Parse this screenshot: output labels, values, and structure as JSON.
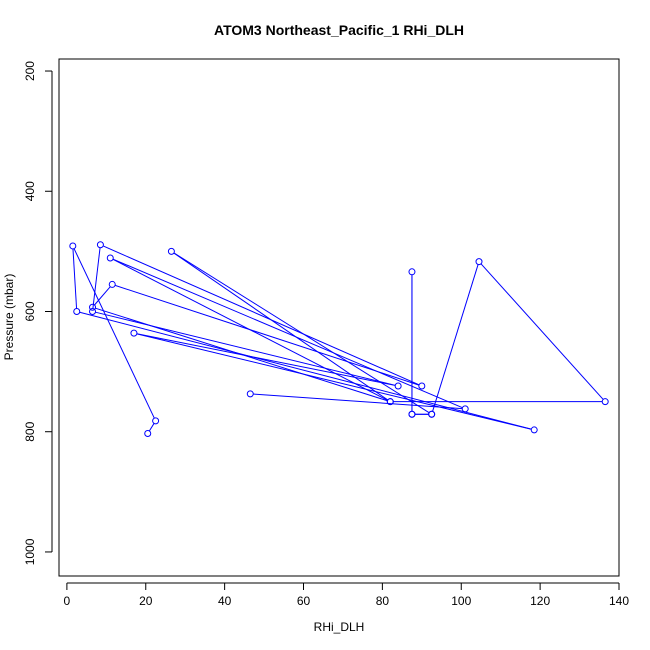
{
  "chart_data": {
    "type": "line",
    "title": "ATOM3 Northeast_Pacific_1 RHi_DLH",
    "xlabel": "RHi_DLH",
    "ylabel": "Pressure (mbar)",
    "xlim": [
      -2,
      140
    ],
    "ylim": [
      1040,
      180
    ],
    "y_reversed": true,
    "grid": false,
    "legend": "none",
    "xticks": [
      0,
      20,
      40,
      60,
      80,
      100,
      120,
      140
    ],
    "yticks": [
      200,
      400,
      600,
      800,
      1000
    ],
    "series": [
      {
        "color": "#0000ff",
        "marker": "open-circle",
        "points": [
          {
            "x": 46.5,
            "y": 737
          },
          {
            "x": 101.0,
            "y": 762
          },
          {
            "x": 11.0,
            "y": 511
          },
          {
            "x": 82.0,
            "y": 750
          },
          {
            "x": 26.5,
            "y": 500
          },
          {
            "x": 92.5,
            "y": 771
          },
          {
            "x": 87.5,
            "y": 771
          },
          {
            "x": 87.5,
            "y": 534
          },
          {
            "x": 87.5,
            "y": 771
          },
          {
            "x": 92.5,
            "y": 771
          },
          {
            "x": 104.5,
            "y": 517
          },
          {
            "x": 136.5,
            "y": 750
          },
          {
            "x": 82.0,
            "y": 750
          },
          {
            "x": 6.5,
            "y": 593
          },
          {
            "x": 11.5,
            "y": 555
          },
          {
            "x": 90.0,
            "y": 724
          },
          {
            "x": 8.5,
            "y": 489
          },
          {
            "x": 6.5,
            "y": 600
          },
          {
            "x": 84.0,
            "y": 724
          },
          {
            "x": 17.0,
            "y": 636
          },
          {
            "x": 118.5,
            "y": 797
          },
          {
            "x": 2.5,
            "y": 600
          },
          {
            "x": 1.5,
            "y": 491
          },
          {
            "x": 22.5,
            "y": 782
          },
          {
            "x": 20.5,
            "y": 803
          }
        ]
      }
    ]
  }
}
